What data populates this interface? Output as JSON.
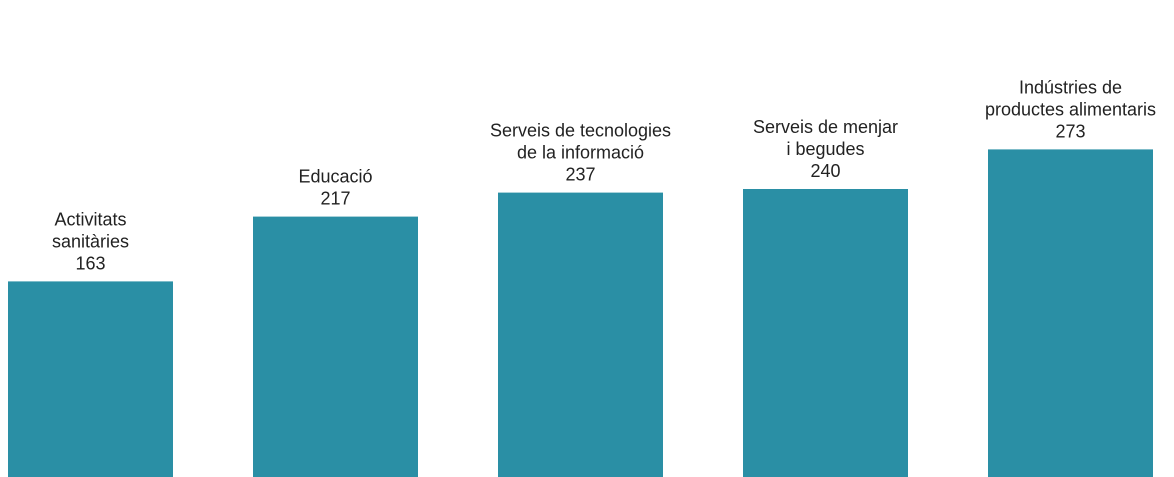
{
  "chart_data": {
    "type": "bar",
    "title": "",
    "xlabel": "",
    "ylabel": "",
    "ylim": [
      0,
      300
    ],
    "grid": false,
    "bar_color": "#2a8fa5",
    "categories": [
      [
        "Activitats",
        "sanitàries"
      ],
      [
        "Educació"
      ],
      [
        "Serveis de tecnologies",
        "de la informació"
      ],
      [
        "Serveis de menjar",
        "i begudes"
      ],
      [
        "Indústries de",
        "productes alimentaris"
      ]
    ],
    "values": [
      163,
      217,
      237,
      240,
      273
    ]
  }
}
